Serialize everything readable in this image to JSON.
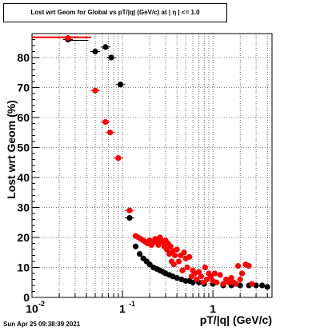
{
  "chart_data": {
    "type": "scatter",
    "title": "Lost wrt Geom for Global vs pT/|q| (GeV/c) at | η | <= 1.0",
    "xlabel": "pT/|q| (GeV/c)",
    "ylabel": "Lost wrt Geom (%)",
    "xscale": "log",
    "xlim": [
      0.01,
      4.5
    ],
    "ylim": [
      0,
      88
    ],
    "grid": true,
    "x_tick_labels": [
      "10",
      "1",
      "1"
    ],
    "x_tick_exponents": [
      "-2",
      "-1",
      ""
    ],
    "y_ticks": [
      0,
      10,
      20,
      30,
      40,
      50,
      60,
      70,
      80
    ],
    "y_tick_labels": [
      "0",
      "10",
      "20",
      "30",
      "40",
      "50",
      "60",
      "70",
      "80"
    ],
    "series": [
      {
        "color": "#000000",
        "x": [
          0.025,
          0.05,
          0.065,
          0.075,
          0.095,
          0.12,
          0.14,
          0.155,
          0.17,
          0.185,
          0.2,
          0.22,
          0.24,
          0.26,
          0.28,
          0.3,
          0.33,
          0.36,
          0.4,
          0.45,
          0.5,
          0.55,
          0.6,
          0.7,
          0.8,
          1.0,
          1.3,
          1.6,
          2.0,
          2.5,
          3.0,
          3.5,
          4.0
        ],
        "y": [
          86,
          82,
          83.5,
          80,
          71,
          26.5,
          17,
          14.5,
          13,
          12,
          11,
          10,
          9.5,
          9,
          8.5,
          8,
          7.5,
          7,
          6.5,
          6,
          5.5,
          5.5,
          5,
          5,
          4.5,
          4.5,
          4,
          4,
          4,
          4,
          4,
          4,
          3.5
        ]
      },
      {
        "color": "#ff0000",
        "x": [
          0.025,
          0.05,
          0.065,
          0.073,
          0.09,
          0.12,
          0.14,
          0.15,
          0.16,
          0.17,
          0.18,
          0.19,
          0.2,
          0.21,
          0.22,
          0.23,
          0.24,
          0.25,
          0.26,
          0.27,
          0.28,
          0.29,
          0.3,
          0.31,
          0.32,
          0.33,
          0.34,
          0.35,
          0.36,
          0.37,
          0.38,
          0.4,
          0.42,
          0.44,
          0.46,
          0.48,
          0.5,
          0.52,
          0.55,
          0.58,
          0.6,
          0.63,
          0.66,
          0.7,
          0.74,
          0.78,
          0.82,
          0.86,
          0.9,
          0.95,
          1.0,
          1.05,
          1.1,
          1.2,
          1.3,
          1.4,
          1.5,
          1.6,
          1.7,
          1.8,
          1.9,
          2.0,
          2.1,
          2.3,
          2.5,
          2.7
        ],
        "y": [
          86.5,
          69,
          58.5,
          55,
          46.5,
          29,
          20.5,
          20,
          19.5,
          19,
          18.5,
          18,
          19,
          17.5,
          18.5,
          19.5,
          18.5,
          17.5,
          20,
          19,
          18.5,
          17,
          19,
          16,
          18,
          14.5,
          17,
          12,
          15.5,
          11,
          14,
          16,
          12,
          14,
          9,
          15,
          13,
          10,
          13.5,
          7,
          9,
          8,
          6,
          8.5,
          7,
          5,
          10,
          6,
          8,
          7,
          5.5,
          8,
          5,
          7.5,
          4.5,
          6,
          5,
          6.5,
          5,
          4.5,
          10.5,
          6,
          8,
          11,
          10.5,
          4.5
        ]
      }
    ]
  },
  "footer": {
    "timestamp": "Sun Apr 25 09:38:39 2021"
  }
}
